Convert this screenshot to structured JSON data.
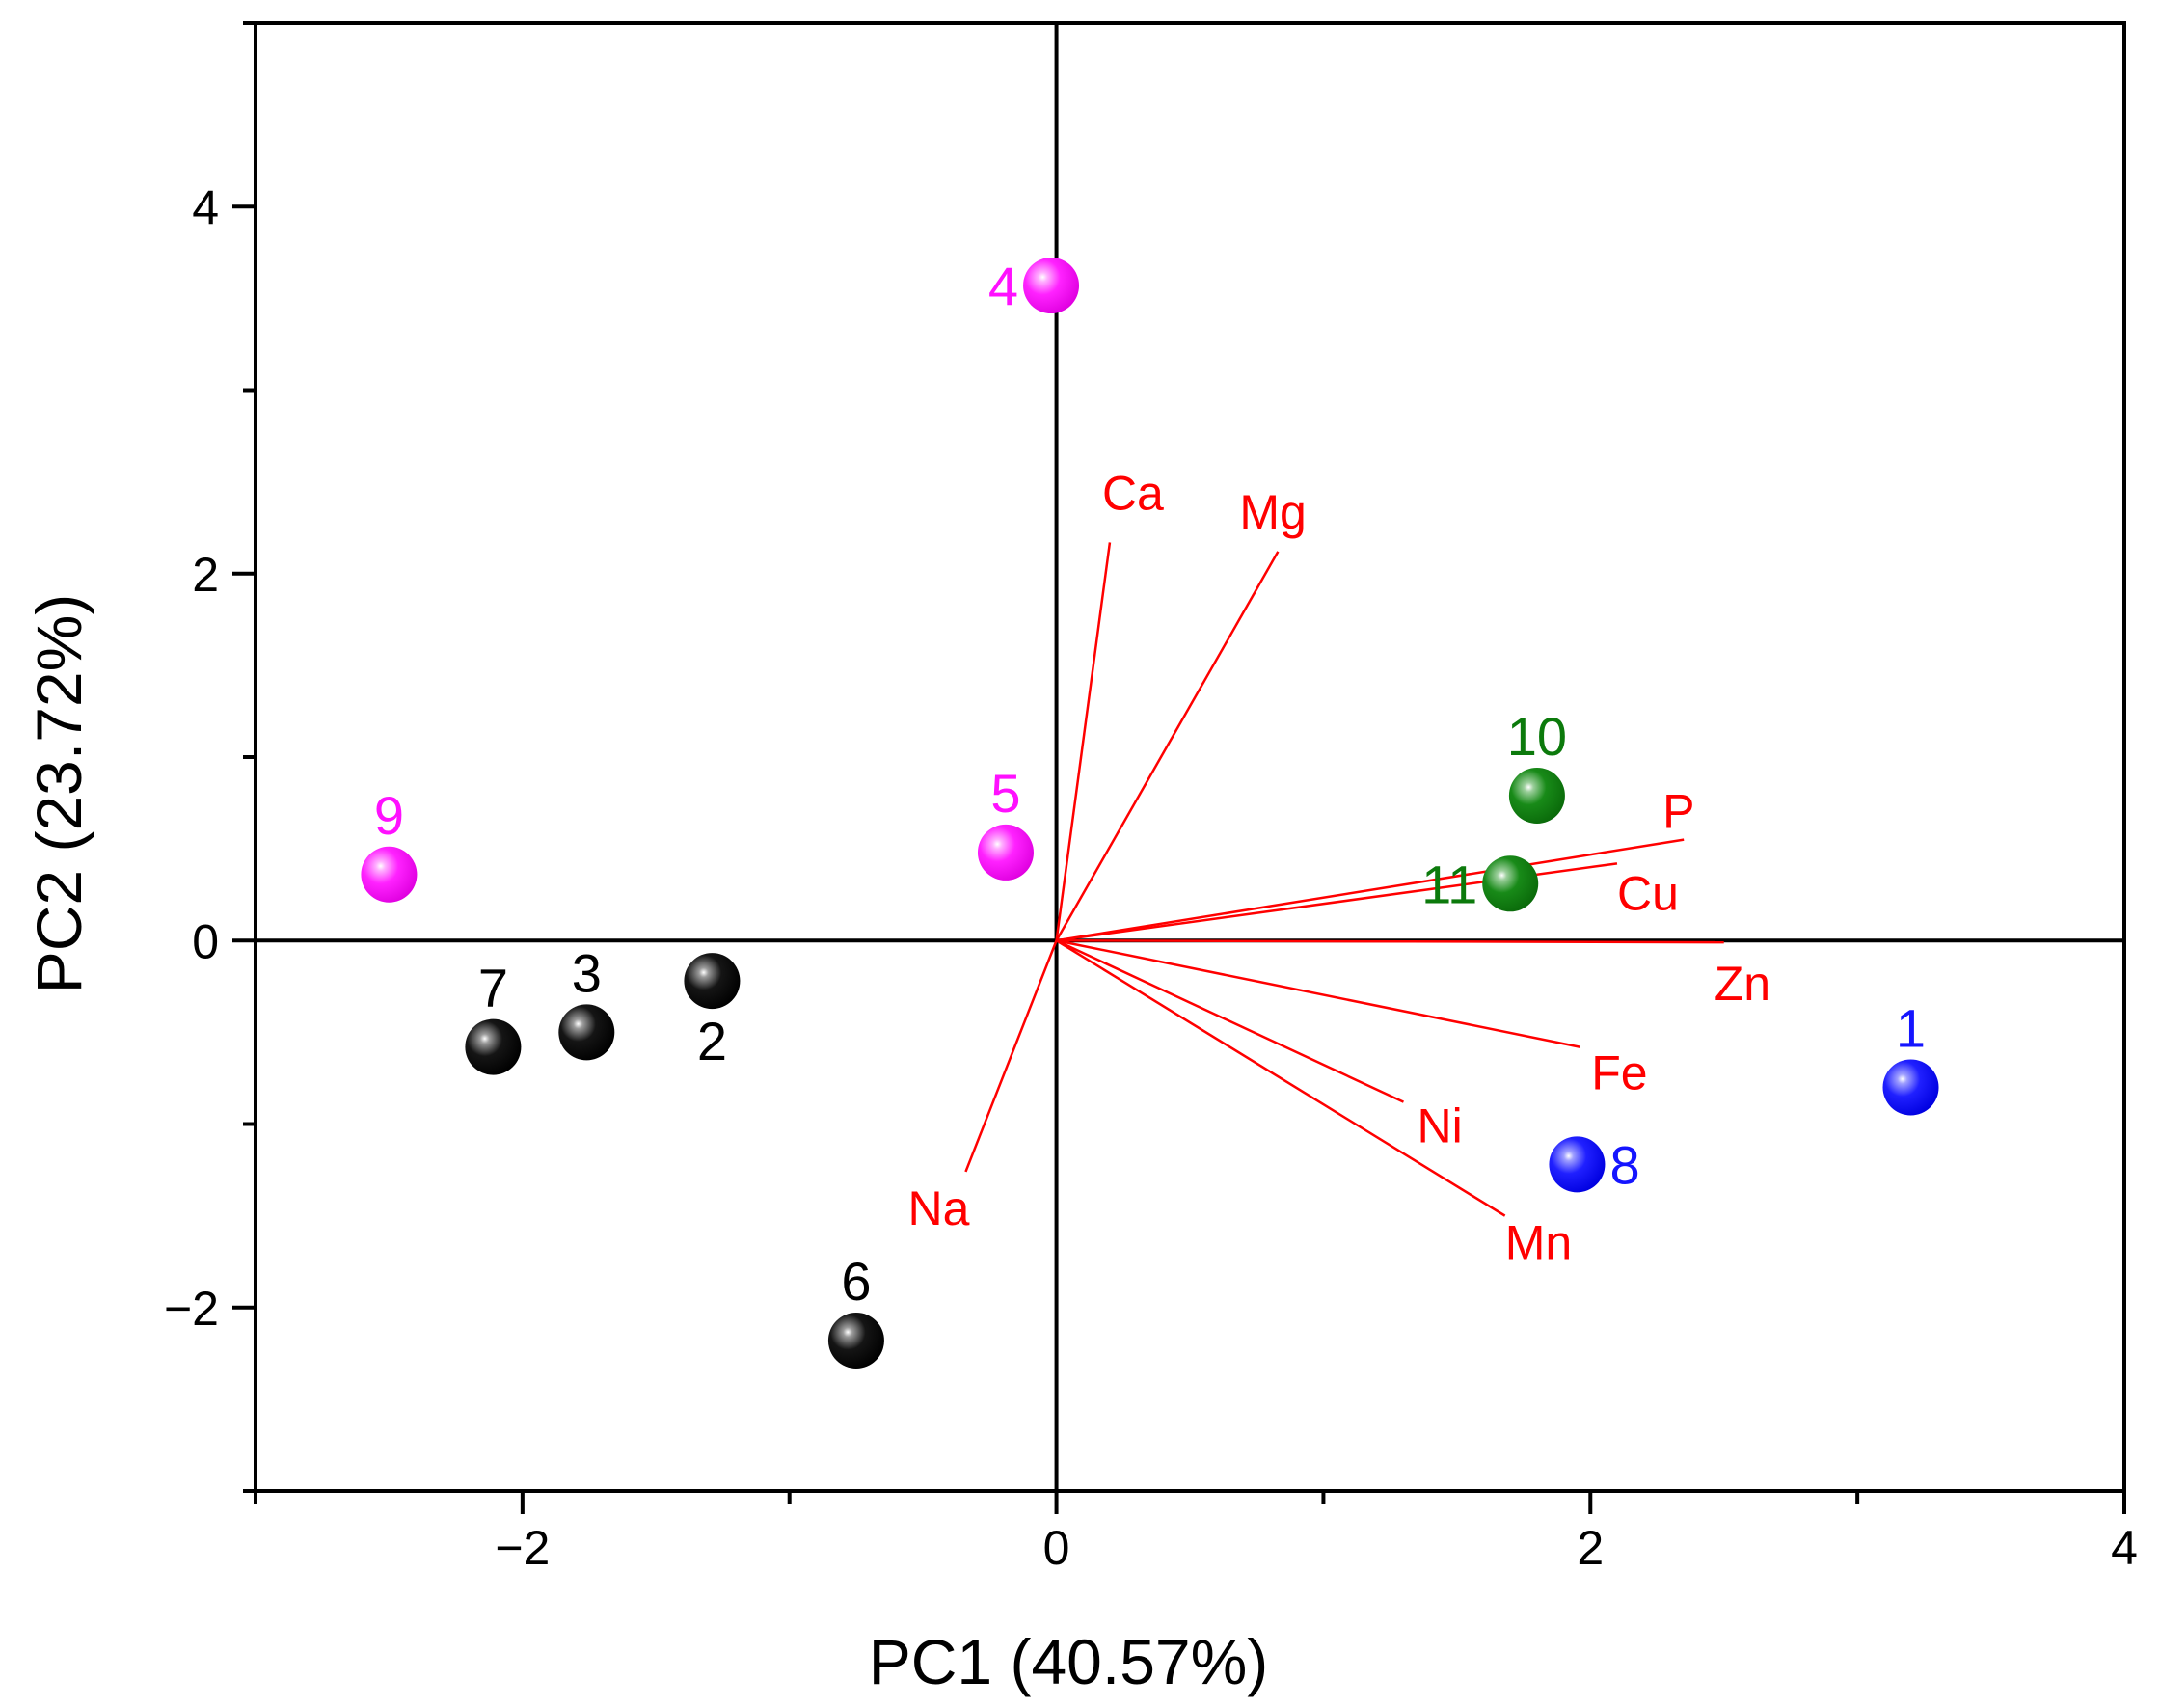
{
  "chart_data": {
    "type": "scatter",
    "subtype": "pca-biplot",
    "title": "",
    "xlabel": "PC1 (40.57%)",
    "ylabel": "PC2 (23.72%)",
    "xlim": [
      -3,
      4
    ],
    "ylim": [
      -3,
      5
    ],
    "x_ticks": [
      -2,
      0,
      2,
      4
    ],
    "x_tick_labels": [
      "−2",
      "0",
      "2",
      "4"
    ],
    "y_ticks": [
      -2,
      0,
      2,
      4
    ],
    "y_tick_labels": [
      "−2",
      "0",
      "2",
      "4"
    ],
    "x_minor_step": 1,
    "y_minor_step": 1,
    "grid": false,
    "reference_lines": [
      {
        "axis": "x",
        "value": 0
      },
      {
        "axis": "y",
        "value": 0
      }
    ],
    "scores": [
      {
        "label": "1",
        "x": 3.2,
        "y": -0.8,
        "color": "#1515ff",
        "label_side": "above"
      },
      {
        "label": "2",
        "x": -1.29,
        "y": -0.22,
        "color": "#000000",
        "label_side": "below"
      },
      {
        "label": "3",
        "x": -1.76,
        "y": -0.5,
        "color": "#000000",
        "label_side": "above"
      },
      {
        "label": "4",
        "x": -0.02,
        "y": 3.57,
        "color": "#ff10ff",
        "label_side": "left"
      },
      {
        "label": "5",
        "x": -0.19,
        "y": 0.48,
        "color": "#ff10ff",
        "label_side": "above"
      },
      {
        "label": "6",
        "x": -0.75,
        "y": -2.18,
        "color": "#000000",
        "label_side": "above"
      },
      {
        "label": "7",
        "x": -2.11,
        "y": -0.58,
        "color": "#000000",
        "label_side": "above"
      },
      {
        "label": "8",
        "x": 1.95,
        "y": -1.22,
        "color": "#1515ff",
        "label_side": "right"
      },
      {
        "label": "9",
        "x": -2.5,
        "y": 0.36,
        "color": "#ff10ff",
        "label_side": "above"
      },
      {
        "label": "10",
        "x": 1.8,
        "y": 0.79,
        "color": "#0c7a0c",
        "label_side": "above"
      },
      {
        "label": "11",
        "x": 1.7,
        "y": 0.31,
        "color": "#0c7a0c",
        "label_side": "left"
      }
    ],
    "loadings": [
      {
        "label": "Ca",
        "x": 0.2,
        "y": 2.17,
        "color": "#ff0000"
      },
      {
        "label": "Mg",
        "x": 0.83,
        "y": 2.12,
        "color": "#ff0000"
      },
      {
        "label": "P",
        "x": 2.35,
        "y": 0.55,
        "color": "#ff0000"
      },
      {
        "label": "Cu",
        "x": 2.1,
        "y": 0.42,
        "color": "#ff0000"
      },
      {
        "label": "Zn",
        "x": 2.5,
        "y": -0.01,
        "color": "#ff0000"
      },
      {
        "label": "Fe",
        "x": 1.96,
        "y": -0.58,
        "color": "#ff0000"
      },
      {
        "label": "Ni",
        "x": 1.3,
        "y": -0.88,
        "color": "#ff0000"
      },
      {
        "label": "Mn",
        "x": 1.68,
        "y": -1.5,
        "color": "#ff0000"
      },
      {
        "label": "Na",
        "x": -0.34,
        "y": -1.26,
        "color": "#ff0000"
      }
    ]
  }
}
